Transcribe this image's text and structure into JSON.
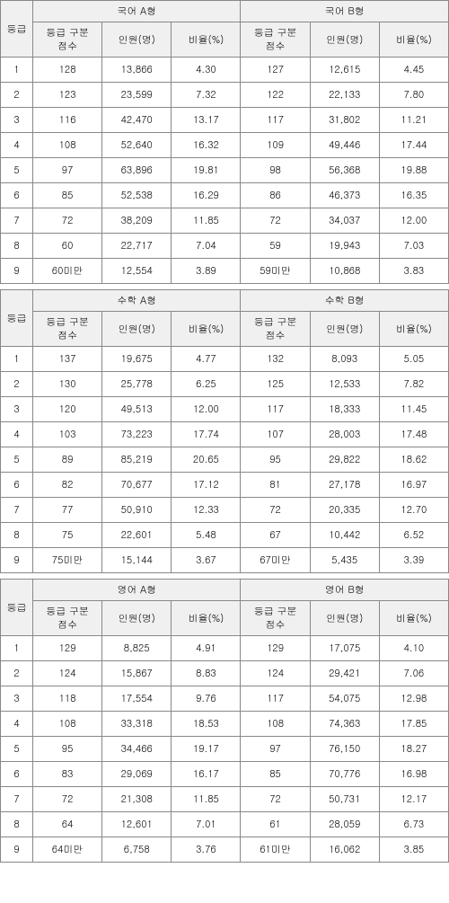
{
  "labels": {
    "grade": "등급",
    "gradeCut": "등급 구분\n점수",
    "count": "인원(명)",
    "ratio": "비율(%)"
  },
  "sections": [
    {
      "a_title": "국어 A형",
      "b_title": "국어 B형",
      "rows": [
        {
          "g": "1",
          "a": {
            "cut": "128",
            "cnt": "13,866",
            "pct": "4.30"
          },
          "b": {
            "cut": "127",
            "cnt": "12,615",
            "pct": "4.45"
          }
        },
        {
          "g": "2",
          "a": {
            "cut": "123",
            "cnt": "23,599",
            "pct": "7.32"
          },
          "b": {
            "cut": "122",
            "cnt": "22,133",
            "pct": "7.80"
          }
        },
        {
          "g": "3",
          "a": {
            "cut": "116",
            "cnt": "42,470",
            "pct": "13.17"
          },
          "b": {
            "cut": "117",
            "cnt": "31,802",
            "pct": "11.21"
          }
        },
        {
          "g": "4",
          "a": {
            "cut": "108",
            "cnt": "52,640",
            "pct": "16.32"
          },
          "b": {
            "cut": "109",
            "cnt": "49,446",
            "pct": "17.44"
          }
        },
        {
          "g": "5",
          "a": {
            "cut": "97",
            "cnt": "63,896",
            "pct": "19.81"
          },
          "b": {
            "cut": "98",
            "cnt": "56,368",
            "pct": "19.88"
          }
        },
        {
          "g": "6",
          "a": {
            "cut": "85",
            "cnt": "52,538",
            "pct": "16.29"
          },
          "b": {
            "cut": "86",
            "cnt": "46,373",
            "pct": "16.35"
          }
        },
        {
          "g": "7",
          "a": {
            "cut": "72",
            "cnt": "38,209",
            "pct": "11.85"
          },
          "b": {
            "cut": "72",
            "cnt": "34,037",
            "pct": "12.00"
          }
        },
        {
          "g": "8",
          "a": {
            "cut": "60",
            "cnt": "22,717",
            "pct": "7.04"
          },
          "b": {
            "cut": "59",
            "cnt": "19,943",
            "pct": "7.03"
          }
        },
        {
          "g": "9",
          "a": {
            "cut": "60미만",
            "cnt": "12,554",
            "pct": "3.89"
          },
          "b": {
            "cut": "59미만",
            "cnt": "10,868",
            "pct": "3.83"
          }
        }
      ]
    },
    {
      "a_title": "수학 A형",
      "b_title": "수학 B형",
      "rows": [
        {
          "g": "1",
          "a": {
            "cut": "137",
            "cnt": "19,675",
            "pct": "4.77"
          },
          "b": {
            "cut": "132",
            "cnt": "8,093",
            "pct": "5.05"
          }
        },
        {
          "g": "2",
          "a": {
            "cut": "130",
            "cnt": "25,778",
            "pct": "6.25"
          },
          "b": {
            "cut": "125",
            "cnt": "12,533",
            "pct": "7.82"
          }
        },
        {
          "g": "3",
          "a": {
            "cut": "120",
            "cnt": "49,513",
            "pct": "12.00"
          },
          "b": {
            "cut": "117",
            "cnt": "18,333",
            "pct": "11.45"
          }
        },
        {
          "g": "4",
          "a": {
            "cut": "103",
            "cnt": "73,223",
            "pct": "17.74"
          },
          "b": {
            "cut": "107",
            "cnt": "28,003",
            "pct": "17.48"
          }
        },
        {
          "g": "5",
          "a": {
            "cut": "89",
            "cnt": "85,219",
            "pct": "20.65"
          },
          "b": {
            "cut": "95",
            "cnt": "29,822",
            "pct": "18.62"
          }
        },
        {
          "g": "6",
          "a": {
            "cut": "82",
            "cnt": "70,677",
            "pct": "17.12"
          },
          "b": {
            "cut": "81",
            "cnt": "27,178",
            "pct": "16.97"
          }
        },
        {
          "g": "7",
          "a": {
            "cut": "77",
            "cnt": "50,910",
            "pct": "12.33"
          },
          "b": {
            "cut": "72",
            "cnt": "20,335",
            "pct": "12.70"
          }
        },
        {
          "g": "8",
          "a": {
            "cut": "75",
            "cnt": "22,601",
            "pct": "5.48"
          },
          "b": {
            "cut": "67",
            "cnt": "10,442",
            "pct": "6.52"
          }
        },
        {
          "g": "9",
          "a": {
            "cut": "75미만",
            "cnt": "15,144",
            "pct": "3.67"
          },
          "b": {
            "cut": "67미만",
            "cnt": "5,435",
            "pct": "3.39"
          }
        }
      ]
    },
    {
      "a_title": "영어 A형",
      "b_title": "영어 B형",
      "rows": [
        {
          "g": "1",
          "a": {
            "cut": "129",
            "cnt": "8,825",
            "pct": "4.91"
          },
          "b": {
            "cut": "129",
            "cnt": "17,075",
            "pct": "4.10"
          }
        },
        {
          "g": "2",
          "a": {
            "cut": "124",
            "cnt": "15,867",
            "pct": "8.83"
          },
          "b": {
            "cut": "124",
            "cnt": "29,421",
            "pct": "7.06"
          }
        },
        {
          "g": "3",
          "a": {
            "cut": "118",
            "cnt": "17,554",
            "pct": "9.76"
          },
          "b": {
            "cut": "117",
            "cnt": "54,075",
            "pct": "12.98"
          }
        },
        {
          "g": "4",
          "a": {
            "cut": "108",
            "cnt": "33,318",
            "pct": "18.53"
          },
          "b": {
            "cut": "108",
            "cnt": "74,363",
            "pct": "17.85"
          }
        },
        {
          "g": "5",
          "a": {
            "cut": "95",
            "cnt": "34,466",
            "pct": "19.17"
          },
          "b": {
            "cut": "97",
            "cnt": "76,150",
            "pct": "18.27"
          }
        },
        {
          "g": "6",
          "a": {
            "cut": "83",
            "cnt": "29,069",
            "pct": "16.17"
          },
          "b": {
            "cut": "85",
            "cnt": "70,776",
            "pct": "16.98"
          }
        },
        {
          "g": "7",
          "a": {
            "cut": "72",
            "cnt": "21,308",
            "pct": "11.85"
          },
          "b": {
            "cut": "72",
            "cnt": "50,731",
            "pct": "12.17"
          }
        },
        {
          "g": "8",
          "a": {
            "cut": "64",
            "cnt": "12,601",
            "pct": "7.01"
          },
          "b": {
            "cut": "61",
            "cnt": "28,059",
            "pct": "6.73"
          }
        },
        {
          "g": "9",
          "a": {
            "cut": "64미만",
            "cnt": "6,758",
            "pct": "3.76"
          },
          "b": {
            "cut": "61미만",
            "cnt": "16,062",
            "pct": "3.85"
          }
        }
      ]
    }
  ]
}
